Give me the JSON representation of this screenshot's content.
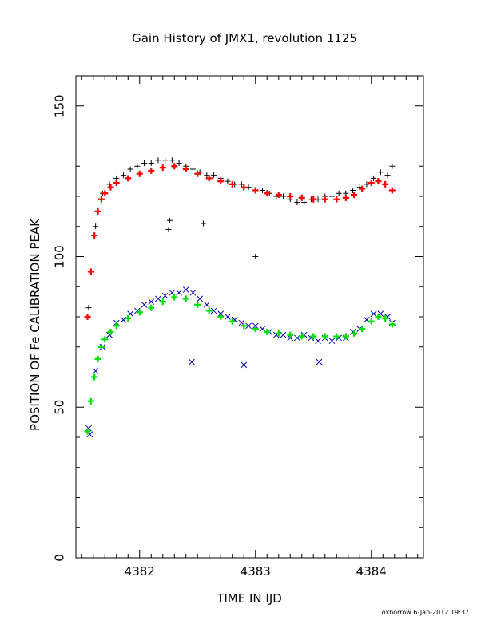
{
  "chart_data": {
    "type": "scatter",
    "title": "Gain History of JMX1, revolution 1125",
    "xlabel": "TIME IN IJD",
    "ylabel": "POSITION OF Fe CALIBRATION PEAK",
    "xlim": [
      4381.45,
      4384.45
    ],
    "ylim": [
      0,
      160
    ],
    "x_ticks": [
      {
        "value": 4382,
        "label": "4382"
      },
      {
        "value": 4383,
        "label": "4383"
      },
      {
        "value": 4384,
        "label": "4384"
      }
    ],
    "y_ticks": [
      {
        "value": 0,
        "label": "0"
      },
      {
        "value": 50,
        "label": "50"
      },
      {
        "value": 100,
        "label": "100"
      },
      {
        "value": 150,
        "label": "150"
      }
    ],
    "grid": false,
    "legend": "none",
    "credit": "oxborrow  6-Jan-2012 19:37",
    "series": [
      {
        "role": "upper-measurements",
        "marker": "plus",
        "color": "#000000",
        "x": [
          4381.56,
          4381.62,
          4381.68,
          4381.74,
          4381.8,
          4381.86,
          4381.92,
          4381.98,
          4382.04,
          4382.1,
          4382.16,
          4382.22,
          4382.28,
          4382.34,
          4382.4,
          4382.46,
          4382.52,
          4382.58,
          4382.64,
          4382.7,
          4382.76,
          4382.82,
          4382.88,
          4382.94,
          4383.0,
          4383.06,
          4383.12,
          4383.18,
          4383.24,
          4383.3,
          4383.36,
          4383.42,
          4383.48,
          4383.54,
          4383.6,
          4383.66,
          4383.72,
          4383.78,
          4383.84,
          4383.9,
          4383.96,
          4384.02,
          4384.08,
          4384.14,
          4384.18,
          4382.25,
          4382.26,
          4382.55,
          4383.0
        ],
        "y": [
          83,
          110,
          121,
          124,
          126,
          127,
          129,
          130,
          131,
          131,
          132,
          132,
          132,
          131,
          130,
          129,
          128,
          127,
          127,
          126,
          125,
          124,
          124,
          123,
          122,
          122,
          121,
          120,
          120,
          119,
          118,
          118,
          119,
          119,
          120,
          120,
          121,
          121,
          122,
          123,
          124,
          126,
          128,
          127,
          130,
          109,
          112,
          111,
          100
        ]
      },
      {
        "role": "upper-fit",
        "marker": "plus",
        "color": "#ff0000",
        "x": [
          4381.55,
          4381.58,
          4381.61,
          4381.64,
          4381.67,
          4381.7,
          4381.75,
          4381.8,
          4381.9,
          4382.0,
          4382.1,
          4382.2,
          4382.3,
          4382.4,
          4382.5,
          4382.6,
          4382.7,
          4382.8,
          4382.9,
          4383.0,
          4383.1,
          4383.2,
          4383.3,
          4383.4,
          4383.5,
          4383.6,
          4383.7,
          4383.78,
          4383.85,
          4383.92,
          4384.0,
          4384.06,
          4384.12,
          4384.18
        ],
        "y": [
          80,
          95,
          107,
          115,
          119,
          121,
          123,
          124.5,
          126,
          127.5,
          128.5,
          129.5,
          130,
          129,
          127.5,
          126,
          125,
          124,
          123,
          122,
          121,
          120.5,
          120,
          119.5,
          119,
          119,
          119,
          119.5,
          120.5,
          122.5,
          124.5,
          125,
          124,
          122
        ]
      },
      {
        "role": "lower-measurements",
        "marker": "cross",
        "color": "#0000bb",
        "x": [
          4381.56,
          4381.62,
          4381.68,
          4381.74,
          4381.8,
          4381.86,
          4381.92,
          4381.98,
          4382.04,
          4382.1,
          4382.16,
          4382.22,
          4382.28,
          4382.34,
          4382.4,
          4382.46,
          4382.52,
          4382.58,
          4382.64,
          4382.7,
          4382.76,
          4382.82,
          4382.88,
          4382.94,
          4383.0,
          4383.06,
          4383.12,
          4383.18,
          4383.24,
          4383.3,
          4383.36,
          4383.42,
          4383.48,
          4383.54,
          4383.6,
          4383.66,
          4383.72,
          4383.78,
          4383.84,
          4383.9,
          4383.96,
          4384.02,
          4384.08,
          4384.14,
          4384.18,
          4382.45,
          4382.9,
          4383.55,
          4381.57
        ],
        "y": [
          43,
          62,
          70,
          74,
          78,
          79,
          81,
          82,
          84,
          85,
          86,
          87,
          88,
          88,
          89,
          88,
          86,
          84,
          82,
          81,
          80,
          79,
          78,
          77,
          77,
          76,
          75,
          74,
          74,
          73,
          73,
          74,
          73,
          72,
          73,
          72,
          73,
          73,
          75,
          76,
          79,
          81,
          81,
          80,
          78,
          65,
          64,
          65,
          41
        ]
      },
      {
        "role": "lower-fit",
        "marker": "plus",
        "color": "#00dd00",
        "x": [
          4381.55,
          4381.58,
          4381.61,
          4381.64,
          4381.67,
          4381.7,
          4381.75,
          4381.8,
          4381.9,
          4382.0,
          4382.1,
          4382.2,
          4382.3,
          4382.4,
          4382.5,
          4382.6,
          4382.7,
          4382.8,
          4382.9,
          4383.0,
          4383.1,
          4383.2,
          4383.3,
          4383.4,
          4383.5,
          4383.6,
          4383.7,
          4383.78,
          4383.85,
          4383.92,
          4384.0,
          4384.06,
          4384.12,
          4384.18
        ],
        "y": [
          42,
          52,
          60,
          66,
          70,
          72.5,
          75,
          77,
          79.5,
          81.5,
          83,
          85,
          86.5,
          86,
          84,
          82,
          80,
          78.5,
          77,
          76,
          75,
          74.5,
          74,
          73.5,
          73.5,
          73.5,
          73.5,
          73.5,
          74.5,
          76,
          78.5,
          80,
          79.5,
          77.5
        ]
      }
    ]
  }
}
